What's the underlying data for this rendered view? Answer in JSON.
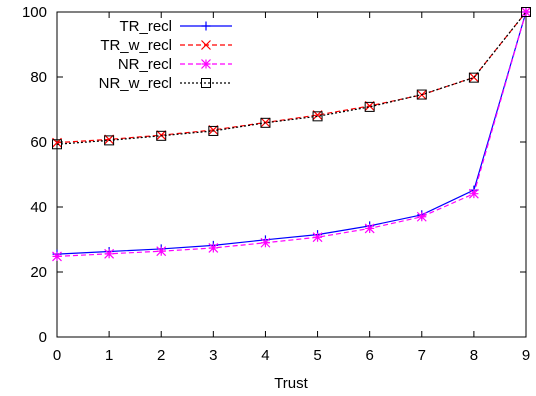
{
  "chart_data": {
    "type": "line",
    "title": "",
    "xlabel": "Trust",
    "ylabel": "",
    "x": [
      0,
      1,
      2,
      3,
      4,
      5,
      6,
      7,
      8,
      9
    ],
    "xlim": [
      0,
      9
    ],
    "ylim": [
      0,
      100
    ],
    "xticks": [
      "0",
      "1",
      "2",
      "3",
      "4",
      "5",
      "6",
      "7",
      "8",
      "9"
    ],
    "yticks": [
      "0",
      "20",
      "40",
      "60",
      "80",
      "100"
    ],
    "grid": false,
    "legend_position": "top-left",
    "series": [
      {
        "name": "TR_recl",
        "color": "#0000ff",
        "dash": "solid",
        "marker": "plus",
        "values": [
          25.5,
          26.3,
          27.1,
          28.2,
          29.9,
          31.5,
          34.2,
          37.6,
          45.2,
          100
        ]
      },
      {
        "name": "TR_w_recl",
        "color": "#ff0000",
        "dash": "dashed",
        "marker": "x",
        "values": [
          59.8,
          60.8,
          62.1,
          63.7,
          66.0,
          68.3,
          71.1,
          74.5,
          79.9,
          100
        ]
      },
      {
        "name": "NR_recl",
        "color": "#ff00ff",
        "dash": "dashed",
        "marker": "star",
        "values": [
          24.8,
          25.6,
          26.4,
          27.4,
          29.0,
          30.7,
          33.4,
          37.0,
          44.1,
          100
        ]
      },
      {
        "name": "NR_w_recl",
        "color": "#000000",
        "dash": "dotted",
        "marker": "square",
        "values": [
          59.3,
          60.5,
          61.9,
          63.4,
          65.9,
          67.9,
          70.8,
          74.6,
          79.8,
          100
        ]
      }
    ]
  }
}
